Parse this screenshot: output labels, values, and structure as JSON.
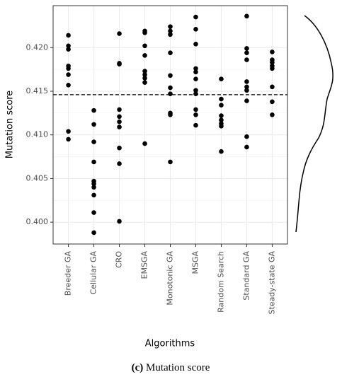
{
  "chart_data": {
    "type": "strip",
    "x_label": "Algorithms",
    "y_label": "Mutation score",
    "caption_label": "(c)",
    "caption": "Mutation score",
    "categories": [
      "Breeder GA",
      "Cellular GA",
      "CRO",
      "EMSGA",
      "Monotonic GA",
      "MSGA",
      "Random Search",
      "Standard GA",
      "Steady-state GA"
    ],
    "values": [
      [
        0.4214,
        0.4202,
        0.4198,
        0.4179,
        0.4176,
        0.4169,
        0.4157,
        0.4104,
        0.4095
      ],
      [
        0.4128,
        0.4112,
        0.4092,
        0.4069,
        0.4047,
        0.4044,
        0.404,
        0.4031,
        0.4011,
        0.3988
      ],
      [
        0.4216,
        0.4182,
        0.4181,
        0.4129,
        0.4121,
        0.4115,
        0.4109,
        0.4085,
        0.4067,
        0.4001
      ],
      [
        0.4219,
        0.4217,
        0.4202,
        0.4191,
        0.4173,
        0.4169,
        0.4165,
        0.416,
        0.409
      ],
      [
        0.4224,
        0.4219,
        0.4215,
        0.4194,
        0.4168,
        0.4154,
        0.4147,
        0.4125,
        0.4123,
        0.4069
      ],
      [
        0.4235,
        0.4221,
        0.4204,
        0.4176,
        0.4172,
        0.4164,
        0.4151,
        0.4147,
        0.4129,
        0.4123,
        0.4111
      ],
      [
        0.4164,
        0.4141,
        0.4134,
        0.4122,
        0.4117,
        0.4113,
        0.411,
        0.4081
      ],
      [
        0.4236,
        0.4199,
        0.4194,
        0.4186,
        0.4161,
        0.4155,
        0.4151,
        0.4139,
        0.4098,
        0.4086
      ],
      [
        0.4195,
        0.4186,
        0.4183,
        0.4179,
        0.4176,
        0.4155,
        0.4138,
        0.4123
      ]
    ],
    "color": "#000000",
    "hline": 0.4146,
    "ylim": [
      0.3975,
      0.4248
    ],
    "yticks": [
      {
        "value": 0.4,
        "label": "0.400"
      },
      {
        "value": 0.405,
        "label": "0.405"
      },
      {
        "value": 0.41,
        "label": "0.410"
      },
      {
        "value": 0.415,
        "label": "0.415"
      },
      {
        "value": 0.42,
        "label": "0.420"
      }
    ],
    "grid": true
  }
}
